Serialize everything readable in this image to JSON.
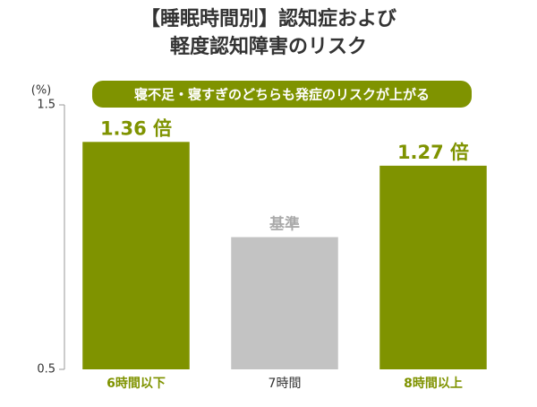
{
  "chart_data": {
    "type": "bar",
    "title": [
      "【睡眠時間別】認知症および",
      "軽度認知障害のリスク"
    ],
    "annotation": "寝不足・寝すぎのどちらも発症のリスクが上がる",
    "y_unit": "(%)",
    "categories": [
      "6時間以下",
      "7時間",
      "8時間以上"
    ],
    "values": [
      1.36,
      1.0,
      1.27
    ],
    "value_labels": [
      "1.36 倍",
      "基準",
      "1.27 倍"
    ],
    "colors": [
      "#7f9300",
      "#c3c3c3",
      "#7f9300"
    ],
    "ylim": [
      0.5,
      1.5
    ],
    "yticks": [
      0.5,
      1.5
    ],
    "grid": false
  }
}
